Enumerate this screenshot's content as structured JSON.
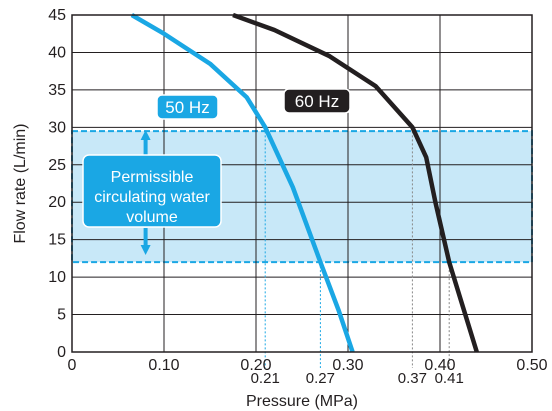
{
  "chart_data": {
    "type": "line",
    "xlabel": "Pressure (MPa)",
    "ylabel": "Flow rate (L/min)",
    "xlim": [
      0,
      0.5
    ],
    "ylim": [
      0,
      45
    ],
    "x_ticks": [
      "0",
      "0.10",
      "0.20",
      "0.30",
      "0.40",
      "0.50"
    ],
    "y_ticks": [
      "0",
      "5",
      "10",
      "15",
      "20",
      "25",
      "30",
      "35",
      "40",
      "45"
    ],
    "grid": true,
    "series": [
      {
        "name": "50 Hz",
        "color": "#1aa7e4",
        "points": [
          [
            0.065,
            45
          ],
          [
            0.1,
            42.5
          ],
          [
            0.15,
            38.5
          ],
          [
            0.19,
            34
          ],
          [
            0.21,
            30
          ],
          [
            0.24,
            22
          ],
          [
            0.27,
            12
          ],
          [
            0.29,
            5.5
          ],
          [
            0.305,
            0
          ]
        ]
      },
      {
        "name": "60 Hz",
        "color": "#231f20",
        "points": [
          [
            0.175,
            45
          ],
          [
            0.22,
            43
          ],
          [
            0.28,
            39.5
          ],
          [
            0.33,
            35.5
          ],
          [
            0.37,
            30
          ],
          [
            0.385,
            26
          ],
          [
            0.395,
            20
          ],
          [
            0.41,
            12
          ],
          [
            0.425,
            6
          ],
          [
            0.44,
            0
          ]
        ]
      }
    ],
    "band": {
      "y_range": [
        12,
        29.5
      ],
      "fill": "#c8e8f8",
      "border": "#1aa7e4",
      "label": [
        "Permissible",
        "circulating water",
        "volume"
      ]
    },
    "reference_lines": [
      {
        "x": 0.21,
        "y": 30,
        "label": "0.21",
        "color": "#1aa7e4"
      },
      {
        "x": 0.27,
        "y": 12,
        "label": "0.27",
        "color": "#1aa7e4"
      },
      {
        "x": 0.37,
        "y": 30,
        "label": "0.37",
        "color": "#888888"
      },
      {
        "x": 0.41,
        "y": 12,
        "label": "0.41",
        "color": "#888888"
      }
    ]
  }
}
